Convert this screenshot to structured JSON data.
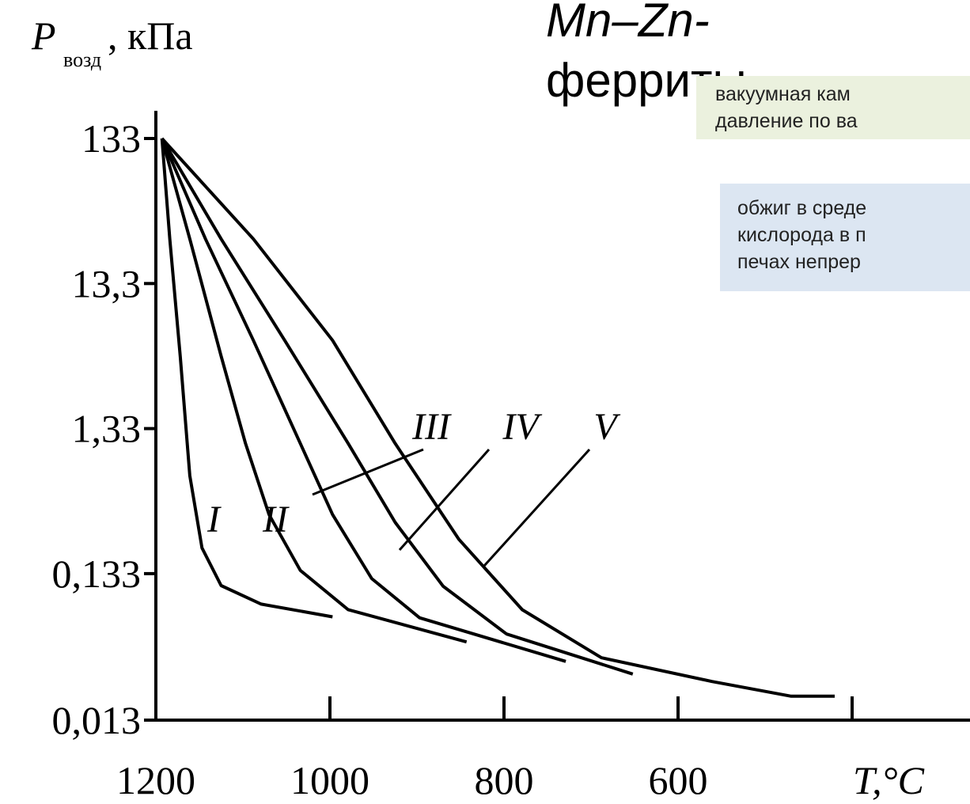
{
  "slide": {
    "title_italic": "Mn–Zn-",
    "title_rest": "ферриты",
    "note_green": [
      "вакуумная кам",
      "давление по ва"
    ],
    "note_blue": [
      "обжиг в среде",
      "кислорода в п",
      "печах непрер"
    ]
  },
  "chart_data": {
    "type": "line",
    "y_label": {
      "symbol": "P",
      "subscript": "возд",
      "unit": ", кПа"
    },
    "x_label": "T,°C",
    "y_scale": "log",
    "xlim": [
      1200,
      400
    ],
    "xticks": [
      1200,
      1000,
      800,
      600,
      {
        "value": 400,
        "label": null
      }
    ],
    "ylim": [
      0.013,
      133
    ],
    "yticks": [
      133,
      {
        "value": 13.3,
        "label": "13,3"
      },
      {
        "value": 1.33,
        "label": "1,33"
      },
      {
        "value": 0.133,
        "label": "0,133"
      },
      {
        "value": 0.013,
        "label": "0,013"
      }
    ],
    "color": "#000000",
    "series": [
      {
        "name": "I",
        "x": [
          1193,
          1184,
          1172,
          1161,
          1147,
          1125,
          1079,
          997
        ],
        "values": [
          133,
          27,
          4.2,
          0.63,
          0.2,
          0.11,
          0.082,
          0.067
        ]
      },
      {
        "name": "II",
        "x": [
          1193,
          1161,
          1125,
          1097,
          1070,
          1034,
          979,
          843
        ],
        "values": [
          133,
          27,
          4.2,
          1.05,
          0.34,
          0.14,
          0.075,
          0.045
        ]
      },
      {
        "name": "III",
        "x": [
          1193,
          1143,
          1088,
          1034,
          997,
          952,
          897,
          729
        ],
        "values": [
          133,
          27,
          5.4,
          1.05,
          0.34,
          0.123,
          0.066,
          0.033
        ]
      },
      {
        "name": "IV",
        "x": [
          1193,
          1125,
          1052,
          979,
          925,
          870,
          797,
          652
        ],
        "values": [
          133,
          27,
          5.4,
          1.05,
          0.3,
          0.109,
          0.051,
          0.027
        ]
      },
      {
        "name": "V",
        "x": [
          1193,
          1088,
          997,
          925,
          852,
          779,
          688,
          561,
          470,
          420
        ],
        "values": [
          133,
          27,
          5.4,
          1.05,
          0.23,
          0.075,
          0.035,
          0.024,
          0.019,
          0.019
        ]
      }
    ]
  }
}
